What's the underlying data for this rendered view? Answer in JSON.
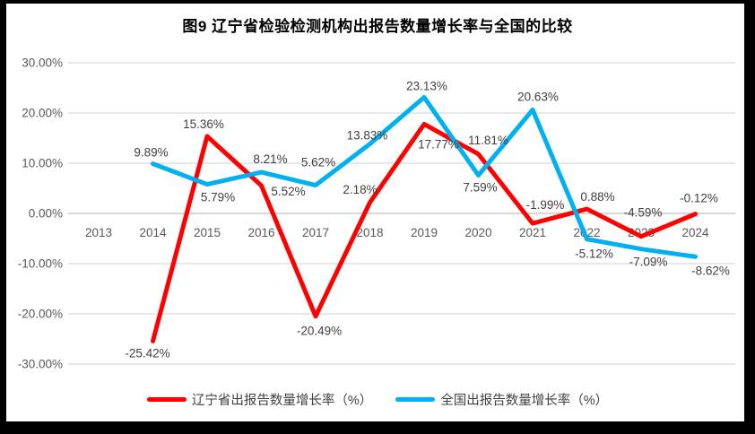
{
  "title": "图9  辽宁省检验检测机构出报告数量增长率与全国的比较",
  "chart_data": {
    "type": "line",
    "x": [
      "2013",
      "2014",
      "2015",
      "2016",
      "2017",
      "2018",
      "2019",
      "2020",
      "2021",
      "2022",
      "2023",
      "2024"
    ],
    "series": [
      {
        "name": "辽宁省出报告数量增长率（%）",
        "color": "#FF0000",
        "values": [
          null,
          -25.42,
          15.36,
          5.52,
          -20.49,
          2.18,
          17.77,
          11.81,
          -1.99,
          0.88,
          -4.59,
          -0.12
        ],
        "labels": [
          null,
          "-25.42%",
          "15.36%",
          "5.52%",
          "-20.49%",
          "2.18%",
          "17.77%",
          "11.81%",
          "-1.99%",
          "0.88%",
          "-4.59%",
          "-0.12%"
        ],
        "label_offsets": [
          [
            0,
            0
          ],
          [
            -6,
            18
          ],
          [
            -4,
            -9
          ],
          [
            30,
            11
          ],
          [
            4,
            21
          ],
          [
            -11,
            -10
          ],
          [
            16,
            27
          ],
          [
            11,
            -11
          ],
          [
            14,
            -16
          ],
          [
            12,
            -9
          ],
          [
            2,
            -22
          ],
          [
            4,
            -13
          ]
        ]
      },
      {
        "name": "全国出报告数量增长率（%）",
        "color": "#00B0F0",
        "values": [
          null,
          9.89,
          5.79,
          8.21,
          5.62,
          13.83,
          23.13,
          7.59,
          20.63,
          -5.12,
          -7.09,
          -8.62
        ],
        "labels": [
          null,
          "9.89%",
          "5.79%",
          "8.21%",
          "5.62%",
          "13.83%",
          "23.13%",
          "7.59%",
          "20.63%",
          "-5.12%",
          "-7.09%",
          "-8.62%"
        ],
        "label_offsets": [
          [
            0,
            0
          ],
          [
            -2,
            -8
          ],
          [
            12,
            19
          ],
          [
            10,
            -10
          ],
          [
            3,
            -21
          ],
          [
            -3,
            -5
          ],
          [
            3,
            -8
          ],
          [
            2,
            18
          ],
          [
            6,
            -10
          ],
          [
            8,
            21
          ],
          [
            8,
            19
          ],
          [
            17,
            20
          ]
        ]
      }
    ],
    "yticks": [
      {
        "v": 30,
        "label": "30.00%"
      },
      {
        "v": 20,
        "label": "20.00%"
      },
      {
        "v": 10,
        "label": "10.00%"
      },
      {
        "v": 0,
        "label": "0.00%"
      },
      {
        "v": -10,
        "label": "-10.00%"
      },
      {
        "v": -20,
        "label": "-20.00%"
      },
      {
        "v": -30,
        "label": "-30.00%"
      }
    ],
    "ylim": [
      -30,
      30
    ],
    "grid": "horizontal",
    "legend_position": "bottom",
    "title": "图9  辽宁省检验检测机构出报告数量增长率与全国的比较",
    "xlabel": "",
    "ylabel": ""
  },
  "colors": {
    "liaoning_series": "#FF0000",
    "national_series": "#00B0F0",
    "gridline": "#D9D9D9",
    "zero_axis": "#BFBFBF",
    "axis_text": "#595959",
    "data_label_text": "#404040",
    "frame": "#000000"
  }
}
